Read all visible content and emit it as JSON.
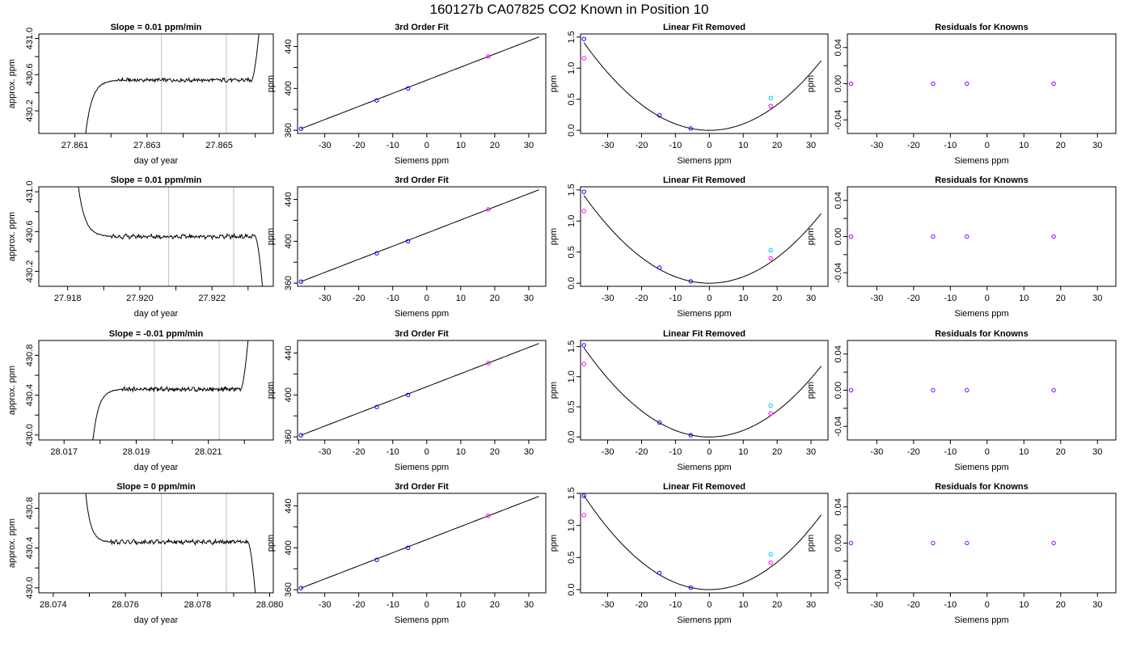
{
  "page_title": "160127b      CA07825    CO2 Known in Position  10",
  "colors": {
    "line": "#000000",
    "gate": "#bebebe",
    "series_a": "#0000ff",
    "series_b": "#ff00ff",
    "series_c": "#00bfff",
    "residual": "#8000ff"
  },
  "chart_data": [
    {
      "id": "r1-trace",
      "type": "line",
      "title": "Slope =  0.01  ppm/min",
      "xlabel": "day of year",
      "ylabel": "approx. ppm",
      "xlim": [
        27.86,
        27.8665
      ],
      "ylim": [
        429.95,
        431.05
      ],
      "xticks": [
        27.861,
        27.862,
        27.863,
        27.864,
        27.865,
        27.866
      ],
      "xtick_labels": [
        "27.861",
        "",
        "27.863",
        "",
        "27.865",
        ""
      ],
      "yticks": [
        430.2,
        430.4,
        430.6,
        430.8,
        431.0
      ],
      "ytick_labels": [
        "430.2",
        "",
        "430.6",
        "",
        "431.0"
      ],
      "gates": [
        27.8634,
        27.8652
      ],
      "trace": {
        "t0": 27.8613,
        "rise_end": 27.8622,
        "plateau_end": 27.8659,
        "t1": 27.8661,
        "start": 429.95,
        "level": 430.54,
        "end": 431.05
      }
    },
    {
      "id": "r1-fit",
      "type": "scatter",
      "title": "3rd Order Fit",
      "xlabel": "Siemens ppm",
      "ylabel": "ppm",
      "xlim": [
        -38,
        35
      ],
      "ylim": [
        357,
        452
      ],
      "xticks": [
        -30,
        -20,
        -10,
        0,
        10,
        20,
        30
      ],
      "xtick_labels": [
        "-30",
        "-20",
        "-10",
        "0",
        "10",
        "20",
        "30"
      ],
      "yticks": [
        360,
        380,
        400,
        420,
        440
      ],
      "ytick_labels": [
        "360",
        "",
        "400",
        "",
        "440"
      ],
      "curve": {
        "type": "fit",
        "x0": -37,
        "x1": 33
      },
      "points": [
        {
          "x": -37,
          "y": 361.5,
          "c": "series_a"
        },
        {
          "x": -14.7,
          "y": 388.5,
          "c": "series_a"
        },
        {
          "x": -5.5,
          "y": 400.0,
          "c": "series_a"
        },
        {
          "x": 18.1,
          "y": 430.5,
          "c": "series_b"
        }
      ]
    },
    {
      "id": "r1-lin",
      "type": "scatter",
      "title": "Linear Fit Removed",
      "xlabel": "Siemens ppm",
      "ylabel": "ppm",
      "xlim": [
        -38,
        35
      ],
      "ylim": [
        -0.05,
        1.55
      ],
      "xticks": [
        -30,
        -20,
        -10,
        0,
        10,
        20,
        30
      ],
      "xtick_labels": [
        "-30",
        "-20",
        "-10",
        "0",
        "10",
        "20",
        "30"
      ],
      "yticks": [
        0,
        0.5,
        1.0,
        1.5
      ],
      "ytick_labels": [
        "0.0",
        "0.5",
        "1.0",
        "1.5"
      ],
      "curve": {
        "type": "parabola",
        "a": 0.00103,
        "x0": -37,
        "x1": 33
      },
      "points": [
        {
          "x": -37,
          "y": 1.47,
          "c": "series_a"
        },
        {
          "x": -37,
          "y": 1.16,
          "c": "series_b"
        },
        {
          "x": -14.7,
          "y": 0.24,
          "c": "series_a"
        },
        {
          "x": -5.5,
          "y": 0.03,
          "c": "series_a"
        },
        {
          "x": 18.1,
          "y": 0.52,
          "c": "series_c"
        },
        {
          "x": 18.1,
          "y": 0.39,
          "c": "series_b"
        }
      ]
    },
    {
      "id": "r1-res",
      "type": "scatter",
      "title": "Residuals for Knowns",
      "xlabel": "Siemens ppm",
      "ylabel": "ppm",
      "xlim": [
        -38,
        35
      ],
      "ylim": [
        -0.055,
        0.055
      ],
      "xticks": [
        -30,
        -20,
        -10,
        0,
        10,
        20,
        30
      ],
      "xtick_labels": [
        "-30",
        "-20",
        "-10",
        "0",
        "10",
        "20",
        "30"
      ],
      "yticks": [
        -0.04,
        -0.02,
        0,
        0.02,
        0.04
      ],
      "ytick_labels": [
        "-0.04",
        "",
        "0.00",
        "",
        "0.04"
      ],
      "points": [
        {
          "x": -37,
          "y": 0,
          "c": "residual"
        },
        {
          "x": -14.7,
          "y": 0,
          "c": "residual"
        },
        {
          "x": -5.5,
          "y": 0,
          "c": "residual"
        },
        {
          "x": 18.1,
          "y": 0,
          "c": "residual"
        }
      ]
    },
    {
      "id": "r2-trace",
      "type": "line",
      "title": "Slope =  0.01  ppm/min",
      "xlabel": "day of year",
      "ylabel": "approx. ppm",
      "xlim": [
        27.9172,
        27.9237
      ],
      "ylim": [
        430.05,
        431.05
      ],
      "xticks": [
        27.918,
        27.919,
        27.92,
        27.921,
        27.922,
        27.923
      ],
      "xtick_labels": [
        "27.918",
        "",
        "27.920",
        "",
        "27.922",
        ""
      ],
      "yticks": [
        430.2,
        430.4,
        430.6,
        430.8,
        431.0
      ],
      "ytick_labels": [
        "430.2",
        "",
        "430.6",
        "",
        "431.0"
      ],
      "gates": [
        27.9208,
        27.9226
      ],
      "trace": {
        "t0": 27.9183,
        "rise_end": 27.9192,
        "plateau_end": 27.9232,
        "t1": 27.9234,
        "start": 431.05,
        "level": 430.55,
        "end": 430.05
      }
    },
    {
      "id": "r2-fit",
      "type": "scatter",
      "title": "3rd Order Fit",
      "xlabel": "Siemens ppm",
      "ylabel": "ppm",
      "xlim": [
        -38,
        35
      ],
      "ylim": [
        357,
        452
      ],
      "xticks": [
        -30,
        -20,
        -10,
        0,
        10,
        20,
        30
      ],
      "xtick_labels": [
        "-30",
        "-20",
        "-10",
        "0",
        "10",
        "20",
        "30"
      ],
      "yticks": [
        360,
        380,
        400,
        420,
        440
      ],
      "ytick_labels": [
        "360",
        "",
        "400",
        "",
        "440"
      ],
      "curve": {
        "type": "fit",
        "x0": -37,
        "x1": 33
      },
      "points": [
        {
          "x": -37,
          "y": 361.5,
          "c": "series_a"
        },
        {
          "x": -14.7,
          "y": 388.5,
          "c": "series_a"
        },
        {
          "x": -5.5,
          "y": 400.0,
          "c": "series_a"
        },
        {
          "x": 18.1,
          "y": 430.5,
          "c": "series_b"
        }
      ]
    },
    {
      "id": "r2-lin",
      "type": "scatter",
      "title": "Linear Fit Removed",
      "xlabel": "Siemens ppm",
      "ylabel": "ppm",
      "xlim": [
        -38,
        35
      ],
      "ylim": [
        -0.05,
        1.55
      ],
      "xticks": [
        -30,
        -20,
        -10,
        0,
        10,
        20,
        30
      ],
      "xtick_labels": [
        "-30",
        "-20",
        "-10",
        "0",
        "10",
        "20",
        "30"
      ],
      "yticks": [
        0,
        0.5,
        1.0,
        1.5
      ],
      "ytick_labels": [
        "0.0",
        "0.5",
        "1.0",
        "1.5"
      ],
      "curve": {
        "type": "parabola",
        "a": 0.00103,
        "x0": -37,
        "x1": 33
      },
      "points": [
        {
          "x": -37,
          "y": 1.47,
          "c": "series_a"
        },
        {
          "x": -37,
          "y": 1.16,
          "c": "series_b"
        },
        {
          "x": -14.7,
          "y": 0.25,
          "c": "series_a"
        },
        {
          "x": -5.5,
          "y": 0.03,
          "c": "series_a"
        },
        {
          "x": 18.1,
          "y": 0.53,
          "c": "series_c"
        },
        {
          "x": 18.1,
          "y": 0.4,
          "c": "series_b"
        }
      ]
    },
    {
      "id": "r2-res",
      "type": "scatter",
      "title": "Residuals for Knowns",
      "xlabel": "Siemens ppm",
      "ylabel": "ppm",
      "xlim": [
        -38,
        35
      ],
      "ylim": [
        -0.055,
        0.055
      ],
      "xticks": [
        -30,
        -20,
        -10,
        0,
        10,
        20,
        30
      ],
      "xtick_labels": [
        "-30",
        "-20",
        "-10",
        "0",
        "10",
        "20",
        "30"
      ],
      "yticks": [
        -0.04,
        -0.02,
        0,
        0.02,
        0.04
      ],
      "ytick_labels": [
        "-0.04",
        "",
        "0.00",
        "",
        "0.04"
      ],
      "points": [
        {
          "x": -37,
          "y": 0,
          "c": "residual"
        },
        {
          "x": -14.7,
          "y": 0,
          "c": "residual"
        },
        {
          "x": -5.5,
          "y": 0,
          "c": "residual"
        },
        {
          "x": 18.1,
          "y": 0,
          "c": "residual"
        }
      ]
    },
    {
      "id": "r3-trace",
      "type": "line",
      "title": "Slope =  -0.01  ppm/min",
      "xlabel": "day of year",
      "ylabel": "approx. ppm",
      "xlim": [
        28.0163,
        28.0228
      ],
      "ylim": [
        429.95,
        430.95
      ],
      "xticks": [
        28.017,
        28.018,
        28.019,
        28.02,
        28.021,
        28.022
      ],
      "xtick_labels": [
        "28.017",
        "",
        "28.019",
        "",
        "28.021",
        ""
      ],
      "yticks": [
        430.0,
        430.2,
        430.4,
        430.6,
        430.8
      ],
      "ytick_labels": [
        "430.0",
        "",
        "430.4",
        "",
        "430.8"
      ],
      "gates": [
        28.0195,
        28.0213
      ],
      "trace": {
        "t0": 28.0178,
        "rise_end": 28.0186,
        "plateau_end": 28.0219,
        "t1": 28.0221,
        "start": 429.95,
        "level": 430.46,
        "end": 430.95
      }
    },
    {
      "id": "r3-fit",
      "type": "scatter",
      "title": "3rd Order Fit",
      "xlabel": "Siemens ppm",
      "ylabel": "ppm",
      "xlim": [
        -38,
        35
      ],
      "ylim": [
        357,
        452
      ],
      "xticks": [
        -30,
        -20,
        -10,
        0,
        10,
        20,
        30
      ],
      "xtick_labels": [
        "-30",
        "-20",
        "-10",
        "0",
        "10",
        "20",
        "30"
      ],
      "yticks": [
        360,
        380,
        400,
        420,
        440
      ],
      "ytick_labels": [
        "360",
        "",
        "400",
        "",
        "440"
      ],
      "curve": {
        "type": "fit",
        "x0": -37,
        "x1": 33
      },
      "points": [
        {
          "x": -37,
          "y": 361.5,
          "c": "series_a"
        },
        {
          "x": -14.7,
          "y": 388.5,
          "c": "series_a"
        },
        {
          "x": -5.5,
          "y": 400.0,
          "c": "series_a"
        },
        {
          "x": 18.1,
          "y": 430.5,
          "c": "series_b"
        }
      ]
    },
    {
      "id": "r3-lin",
      "type": "scatter",
      "title": "Linear Fit Removed",
      "xlabel": "Siemens ppm",
      "ylabel": "ppm",
      "xlim": [
        -38,
        35
      ],
      "ylim": [
        -0.05,
        1.6
      ],
      "xticks": [
        -30,
        -20,
        -10,
        0,
        10,
        20,
        30
      ],
      "xtick_labels": [
        "-30",
        "-20",
        "-10",
        "0",
        "10",
        "20",
        "30"
      ],
      "yticks": [
        0,
        0.5,
        1.0,
        1.5
      ],
      "ytick_labels": [
        "0.0",
        "0.5",
        "1.0",
        "1.5"
      ],
      "curve": {
        "type": "parabola",
        "a": 0.00108,
        "x0": -37,
        "x1": 33
      },
      "points": [
        {
          "x": -37,
          "y": 1.52,
          "c": "series_a"
        },
        {
          "x": -37,
          "y": 1.21,
          "c": "series_b"
        },
        {
          "x": -14.7,
          "y": 0.24,
          "c": "series_a"
        },
        {
          "x": -5.5,
          "y": 0.03,
          "c": "series_a"
        },
        {
          "x": 18.1,
          "y": 0.52,
          "c": "series_c"
        },
        {
          "x": 18.1,
          "y": 0.39,
          "c": "series_b"
        }
      ]
    },
    {
      "id": "r3-res",
      "type": "scatter",
      "title": "Residuals for Knowns",
      "xlabel": "Siemens ppm",
      "ylabel": "ppm",
      "xlim": [
        -38,
        35
      ],
      "ylim": [
        -0.055,
        0.055
      ],
      "xticks": [
        -30,
        -20,
        -10,
        0,
        10,
        20,
        30
      ],
      "xtick_labels": [
        "-30",
        "-20",
        "-10",
        "0",
        "10",
        "20",
        "30"
      ],
      "yticks": [
        -0.04,
        -0.02,
        0,
        0.02,
        0.04
      ],
      "ytick_labels": [
        "-0.04",
        "",
        "0.00",
        "",
        "0.04"
      ],
      "points": [
        {
          "x": -37,
          "y": 0,
          "c": "residual"
        },
        {
          "x": -14.7,
          "y": 0,
          "c": "residual"
        },
        {
          "x": -5.5,
          "y": 0,
          "c": "residual"
        },
        {
          "x": 18.1,
          "y": 0,
          "c": "residual"
        }
      ]
    },
    {
      "id": "r4-trace",
      "type": "line",
      "title": "Slope =  0  ppm/min",
      "xlabel": "day of year",
      "ylabel": "approx. ppm",
      "xlim": [
        28.0736,
        28.0801
      ],
      "ylim": [
        429.95,
        430.95
      ],
      "xticks": [
        28.074,
        28.075,
        28.076,
        28.077,
        28.078,
        28.079,
        28.08
      ],
      "xtick_labels": [
        "28.074",
        "",
        "28.076",
        "",
        "28.078",
        "",
        "28.080"
      ],
      "yticks": [
        430.0,
        430.2,
        430.4,
        430.6,
        430.8
      ],
      "ytick_labels": [
        "430.0",
        "",
        "430.4",
        "",
        "430.8"
      ],
      "gates": [
        28.077,
        28.0788
      ],
      "trace": {
        "t0": 28.0749,
        "rise_end": 28.0756,
        "plateau_end": 28.0794,
        "t1": 28.0796,
        "start": 430.95,
        "level": 430.46,
        "end": 429.95
      }
    },
    {
      "id": "r4-fit",
      "type": "scatter",
      "title": "3rd Order Fit",
      "xlabel": "Siemens ppm",
      "ylabel": "ppm",
      "xlim": [
        -38,
        35
      ],
      "ylim": [
        357,
        452
      ],
      "xticks": [
        -30,
        -20,
        -10,
        0,
        10,
        20,
        30
      ],
      "xtick_labels": [
        "-30",
        "-20",
        "-10",
        "0",
        "10",
        "20",
        "30"
      ],
      "yticks": [
        360,
        380,
        400,
        420,
        440
      ],
      "ytick_labels": [
        "360",
        "",
        "400",
        "",
        "440"
      ],
      "curve": {
        "type": "fit",
        "x0": -37,
        "x1": 33
      },
      "points": [
        {
          "x": -37,
          "y": 361.5,
          "c": "series_a"
        },
        {
          "x": -14.7,
          "y": 388.5,
          "c": "series_a"
        },
        {
          "x": -5.5,
          "y": 400.0,
          "c": "series_a"
        },
        {
          "x": 18.1,
          "y": 430.5,
          "c": "series_b"
        }
      ]
    },
    {
      "id": "r4-lin",
      "type": "scatter",
      "title": "Linear Fit Removed",
      "xlabel": "Siemens ppm",
      "ylabel": "ppm",
      "xlim": [
        -38,
        35
      ],
      "ylim": [
        -0.05,
        1.5
      ],
      "xticks": [
        -30,
        -20,
        -10,
        0,
        10,
        20,
        30
      ],
      "xtick_labels": [
        "-30",
        "-20",
        "-10",
        "0",
        "10",
        "20",
        "30"
      ],
      "yticks": [
        0,
        0.5,
        1.0,
        1.5
      ],
      "ytick_labels": [
        "0.0",
        "0.5",
        "1.0",
        "1.5"
      ],
      "curve": {
        "type": "parabola",
        "a": 0.00107,
        "x0": -37,
        "x1": 33
      },
      "points": [
        {
          "x": -37,
          "y": 1.46,
          "c": "series_a"
        },
        {
          "x": -37,
          "y": 1.16,
          "c": "series_b"
        },
        {
          "x": -14.7,
          "y": 0.26,
          "c": "series_a"
        },
        {
          "x": -5.5,
          "y": 0.03,
          "c": "series_a"
        },
        {
          "x": 18.1,
          "y": 0.55,
          "c": "series_c"
        },
        {
          "x": 18.1,
          "y": 0.42,
          "c": "series_b"
        }
      ]
    },
    {
      "id": "r4-res",
      "type": "scatter",
      "title": "Residuals for Knowns",
      "xlabel": "Siemens ppm",
      "ylabel": "ppm",
      "xlim": [
        -38,
        35
      ],
      "ylim": [
        -0.055,
        0.055
      ],
      "xticks": [
        -30,
        -20,
        -10,
        0,
        10,
        20,
        30
      ],
      "xtick_labels": [
        "-30",
        "-20",
        "-10",
        "0",
        "10",
        "20",
        "30"
      ],
      "yticks": [
        -0.04,
        -0.02,
        0,
        0.02,
        0.04
      ],
      "ytick_labels": [
        "-0.04",
        "",
        "0.00",
        "",
        "0.04"
      ],
      "points": [
        {
          "x": -37,
          "y": 0,
          "c": "residual"
        },
        {
          "x": -14.7,
          "y": 0,
          "c": "residual"
        },
        {
          "x": -5.5,
          "y": 0,
          "c": "residual"
        },
        {
          "x": 18.1,
          "y": 0,
          "c": "residual"
        }
      ]
    }
  ]
}
